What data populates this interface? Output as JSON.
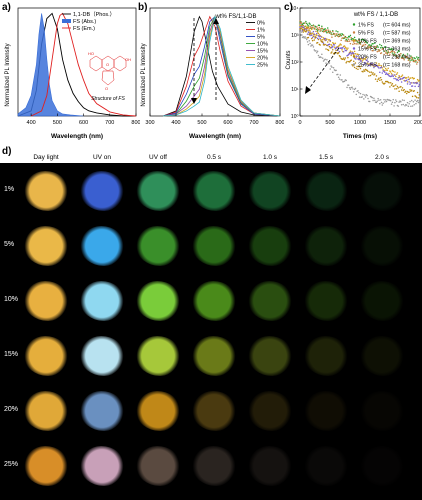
{
  "panel_letters": [
    "a)",
    "b)",
    "c)",
    "d)"
  ],
  "chart_data": [
    {
      "type": "area",
      "panel": "a",
      "xlabel": "Wavelength (nm)",
      "ylabel": "Normalized PL Intensity",
      "xlim": [
        350,
        800
      ],
      "xticks": [
        400,
        500,
        600,
        700,
        800
      ],
      "legend": [
        "1,1-DB（Phos.）",
        "FS (Abs.)",
        "FS (Em.)"
      ],
      "legend_placement": "top-right",
      "annotation": "Structure of FS",
      "structure_labels": [
        "HO",
        "OH",
        "O",
        "O"
      ],
      "series": [
        {
          "name": "1,1-DB（Phos.）",
          "color": "#000000",
          "x": [
            350,
            400,
            420,
            440,
            460,
            480,
            500,
            520,
            540,
            560,
            580,
            600,
            620,
            650,
            700,
            750,
            800
          ],
          "y": [
            0,
            0.05,
            0.25,
            0.7,
            0.95,
            1.0,
            0.85,
            0.55,
            0.35,
            0.22,
            0.14,
            0.08,
            0.05,
            0.03,
            0.01,
            0,
            0
          ]
        },
        {
          "name": "FS (Abs.)",
          "color": "#3a6fd8",
          "x": [
            350,
            380,
            400,
            420,
            430,
            440,
            450,
            460,
            470,
            480,
            500,
            520,
            550,
            600
          ],
          "y": [
            0.02,
            0.08,
            0.2,
            0.5,
            0.8,
            1.0,
            0.85,
            0.55,
            0.3,
            0.15,
            0.05,
            0.02,
            0.01,
            0
          ]
        },
        {
          "name": "FS (Em.)",
          "color": "#e02020",
          "x": [
            400,
            440,
            460,
            480,
            500,
            510,
            520,
            540,
            560,
            580,
            600,
            620,
            650,
            700,
            750,
            800
          ],
          "y": [
            0,
            0.05,
            0.2,
            0.55,
            0.9,
            0.98,
            1.0,
            0.9,
            0.7,
            0.5,
            0.35,
            0.22,
            0.12,
            0.04,
            0.01,
            0
          ]
        }
      ]
    },
    {
      "type": "line",
      "panel": "b",
      "title": "wt% FS/1,1-DB",
      "xlabel": "Wavelength (nm)",
      "ylabel": "Normalized PL Intensity",
      "xlim": [
        300,
        800
      ],
      "xticks": [
        300,
        400,
        500,
        600,
        700,
        800
      ],
      "legend_placement": "top-right",
      "series": [
        {
          "name": "0%",
          "color": "#000000",
          "x": [
            350,
            400,
            440,
            470,
            490,
            500,
            520,
            540,
            560,
            600,
            650,
            700,
            800
          ],
          "y": [
            0,
            0.05,
            0.4,
            0.85,
            1.0,
            0.95,
            0.7,
            0.45,
            0.3,
            0.12,
            0.04,
            0.01,
            0
          ]
        },
        {
          "name": "1%",
          "color": "#e02020",
          "x": [
            350,
            400,
            440,
            470,
            490,
            510,
            530,
            550,
            570,
            600,
            650,
            700,
            800
          ],
          "y": [
            0,
            0.04,
            0.3,
            0.6,
            0.7,
            0.85,
            1.0,
            0.9,
            0.65,
            0.35,
            0.1,
            0.02,
            0
          ]
        },
        {
          "name": "5%",
          "color": "#1f3fbf",
          "x": [
            350,
            400,
            440,
            470,
            490,
            510,
            530,
            550,
            570,
            600,
            650,
            700,
            800
          ],
          "y": [
            0,
            0.03,
            0.22,
            0.42,
            0.5,
            0.7,
            0.95,
            1.0,
            0.75,
            0.4,
            0.12,
            0.02,
            0
          ]
        },
        {
          "name": "10%",
          "color": "#2ca02c",
          "x": [
            350,
            400,
            440,
            470,
            490,
            510,
            530,
            550,
            570,
            600,
            650,
            700,
            800
          ],
          "y": [
            0,
            0.02,
            0.15,
            0.3,
            0.38,
            0.6,
            0.9,
            1.0,
            0.8,
            0.42,
            0.13,
            0.03,
            0
          ]
        },
        {
          "name": "15%",
          "color": "#8b3fa8",
          "x": [
            350,
            400,
            440,
            470,
            490,
            510,
            530,
            550,
            570,
            600,
            650,
            700,
            800
          ],
          "y": [
            0,
            0.02,
            0.1,
            0.2,
            0.27,
            0.5,
            0.85,
            1.0,
            0.82,
            0.45,
            0.14,
            0.03,
            0
          ]
        },
        {
          "name": "20%",
          "color": "#d4a017",
          "x": [
            350,
            400,
            440,
            470,
            490,
            510,
            530,
            550,
            570,
            600,
            650,
            700,
            800
          ],
          "y": [
            0,
            0.01,
            0.07,
            0.14,
            0.2,
            0.42,
            0.8,
            1.0,
            0.85,
            0.47,
            0.15,
            0.03,
            0
          ]
        },
        {
          "name": "25%",
          "color": "#2bb5c8",
          "x": [
            350,
            400,
            440,
            470,
            490,
            510,
            530,
            550,
            570,
            600,
            650,
            700,
            800
          ],
          "y": [
            0,
            0.01,
            0.05,
            0.1,
            0.14,
            0.35,
            0.75,
            1.0,
            0.88,
            0.5,
            0.16,
            0.03,
            0
          ]
        }
      ]
    },
    {
      "type": "scatter",
      "panel": "c",
      "title": "wt% FS / 1,1-DB",
      "xlabel": "Times (ms)",
      "ylabel": "Counts",
      "xlim": [
        0,
        2000
      ],
      "xticks": [
        0,
        500,
        1000,
        1500,
        2000
      ],
      "yscale": "log",
      "ylim": [
        1,
        10000
      ],
      "ytick_labels": [
        "10⁰",
        "10¹",
        "10²",
        "10³",
        "10⁴"
      ],
      "legend_placement": "top-right",
      "series": [
        {
          "name": "1% FS",
          "lifetime_label": "(τ= 604 ms)",
          "color": "#2ca02c",
          "tau": 604,
          "a0": 3000,
          "bg": 12
        },
        {
          "name": "5% FS",
          "lifetime_label": "(τ= 587 ms)",
          "color": "#c87f3f",
          "tau": 587,
          "a0": 2600,
          "bg": 9
        },
        {
          "name": "10% FS",
          "lifetime_label": "(τ= 369 ms)",
          "color": "#d4a017",
          "tau": 369,
          "a0": 2200,
          "bg": 7
        },
        {
          "name": "15% FS",
          "lifetime_label": "(τ= 363 ms)",
          "color": "#7a5fd0",
          "tau": 363,
          "a0": 1900,
          "bg": 5
        },
        {
          "name": "20% FS",
          "lifetime_label": "(τ= 298 ms)",
          "color": "#b8860b",
          "tau": 298,
          "a0": 1600,
          "bg": 4
        },
        {
          "name": "25% FS",
          "lifetime_label": "(τ= 168 ms)",
          "color": "#999999",
          "tau": 168,
          "a0": 1300,
          "bg": 3
        }
      ]
    }
  ],
  "photo_grid": {
    "columns": [
      "Day light",
      "UV on",
      "UV off",
      "0.5 s",
      "1.0 s",
      "1.5 s",
      "2.0 s"
    ],
    "rows": [
      "1%",
      "5%",
      "10%",
      "15%",
      "20%",
      "25%"
    ],
    "colors": [
      [
        "#e9b64a",
        "#3a5fd0",
        "#2f8f5a",
        "#1e6e3a",
        "#114422",
        "#0a2412",
        "#060f08"
      ],
      [
        "#eab848",
        "#3aa8ea",
        "#3a8f2a",
        "#2a6a18",
        "#183e0e",
        "#0e220a",
        "#070f05"
      ],
      [
        "#e8b040",
        "#8fd8f0",
        "#7acc3a",
        "#4a8a1a",
        "#2a4e10",
        "#162a08",
        "#0a1404"
      ],
      [
        "#e5ae3c",
        "#b8e2f0",
        "#a6c83a",
        "#6a7a18",
        "#3a4410",
        "#1e2208",
        "#0e1004"
      ],
      [
        "#e0a838",
        "#6a90c0",
        "#c08818",
        "#4a3a10",
        "#221c08",
        "#100d04",
        "#070603"
      ],
      [
        "#d88e28",
        "#c8a0b8",
        "#5a4a40",
        "#2a2420",
        "#151210",
        "#0a0908",
        "#050404"
      ]
    ]
  }
}
